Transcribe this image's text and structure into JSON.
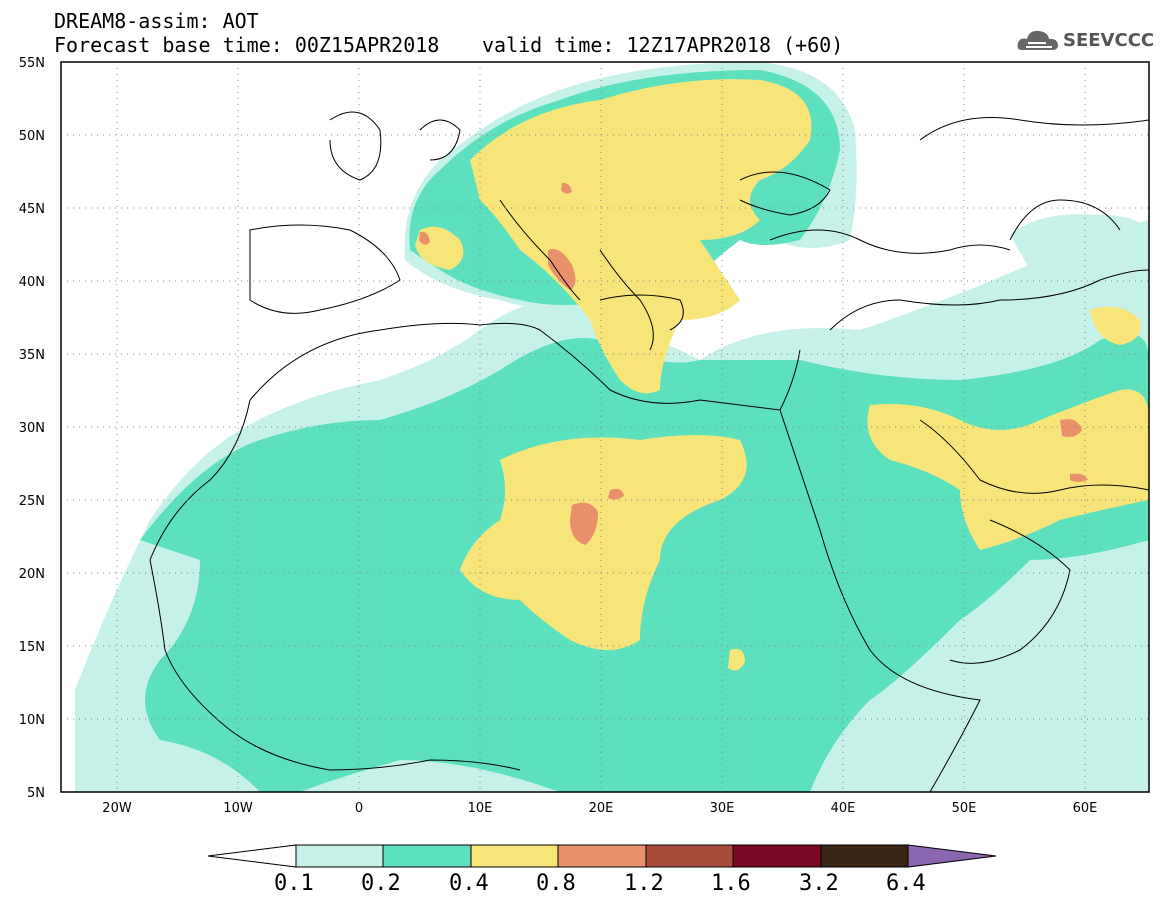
{
  "header": {
    "line1": "DREAM8-assim: AOT",
    "line2": "Forecast base time: 00Z15APR2018",
    "valid": "valid time: 12Z17APR2018 (+60)",
    "logo_text": "SEEVCCC"
  },
  "map": {
    "lon_range": [
      -25,
      65
    ],
    "lat_range": [
      5,
      55
    ],
    "lat_labels": [
      "55N",
      "50N",
      "45N",
      "40N",
      "35N",
      "30N",
      "25N",
      "20N",
      "15N",
      "10N",
      "5N"
    ],
    "lon_labels": [
      "20W",
      "10W",
      "0",
      "10E",
      "20E",
      "30E",
      "40E",
      "50E",
      "60E"
    ]
  },
  "colorbar": {
    "labels": [
      "0.1",
      "0.2",
      "0.4",
      "0.8",
      "1.2",
      "1.6",
      "3.2",
      "6.4"
    ],
    "colors": [
      "#ffffff",
      "#c6f1e8",
      "#5ce0bd",
      "#f7e57a",
      "#e8916c",
      "#a94b3c",
      "#7a0825",
      "#3a2413",
      "#8b65b0"
    ]
  }
}
